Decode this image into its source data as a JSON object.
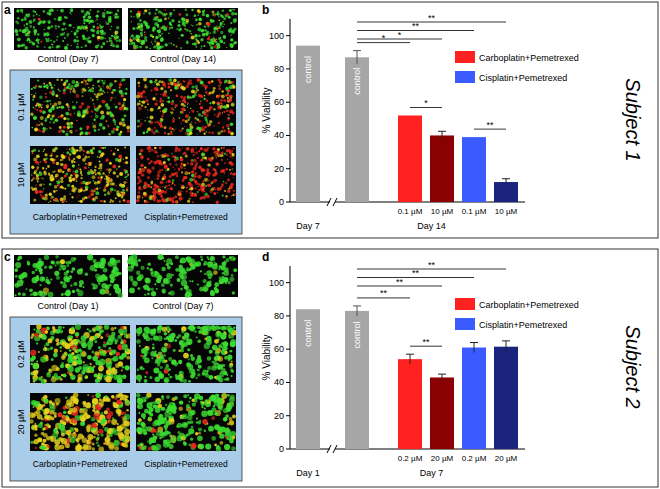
{
  "figure": {
    "panel_letters": [
      "a",
      "b",
      "c",
      "d"
    ],
    "subjects": [
      "Subject 1",
      "Subject 2"
    ]
  },
  "image_panels": [
    {
      "controls": [
        "Control (Day 7)",
        "Control (Day 14)"
      ],
      "rows": [
        "0.1 µM",
        "10 µM"
      ],
      "columns": [
        "Carboplatin+Pemetrexed",
        "Cisplatin+Pemetrexed"
      ]
    },
    {
      "controls": [
        "Control (Day 1)",
        "Control (Day 7)"
      ],
      "rows": [
        "0.2 µM",
        "20 µM"
      ],
      "columns": [
        "Carboplatin+Pemetrexed",
        "Cisplatin+Pemetrexed"
      ]
    }
  ],
  "chart_data": [
    {
      "type": "bar",
      "y_label": "% Viability",
      "ylim": [
        0,
        110
      ],
      "yticks": [
        0,
        20,
        40,
        60,
        80,
        100
      ],
      "categories": [
        null,
        null,
        "0.1 µM",
        "10 µM",
        "0.1 µM",
        "10 µM"
      ],
      "x_groups": [
        "Day 7",
        "Day 14",
        "Day 14",
        "Day 14",
        "Day 14",
        "Day 14"
      ],
      "legend": "top-right",
      "series": [
        {
          "name": "control",
          "color": "#a6a6a6",
          "values": [
            94,
            87,
            null,
            null,
            null,
            null
          ],
          "errors": [
            null,
            4,
            null,
            null,
            null,
            null
          ]
        },
        {
          "name": "Carboplatin+Pemetrexed",
          "color": "#ff2020",
          "colors": [
            null,
            null,
            "#ff2020",
            "#8b0000",
            null,
            null
          ],
          "values": [
            null,
            null,
            52,
            40,
            null,
            null
          ],
          "errors": [
            null,
            null,
            null,
            2.5,
            null,
            null
          ]
        },
        {
          "name": "Cisplatin+Pemetrexed",
          "color": "#3a5bff",
          "colors": [
            null,
            null,
            null,
            null,
            "#3a5bff",
            "#1a237e"
          ],
          "values": [
            null,
            null,
            null,
            null,
            39,
            12
          ],
          "errors": [
            null,
            null,
            null,
            null,
            null,
            2
          ]
        }
      ],
      "significance": [
        {
          "from": 1,
          "to": 5,
          "label": "**"
        },
        {
          "from": 1,
          "to": 4,
          "label": "**"
        },
        {
          "from": 1,
          "to": 3,
          "label": "*"
        },
        {
          "from": 1,
          "to": 2,
          "label": "*"
        },
        {
          "from": 2,
          "to": 3,
          "label": "*"
        },
        {
          "from": 4,
          "to": 5,
          "label": "**"
        }
      ]
    },
    {
      "type": "bar",
      "y_label": "% Viability",
      "ylim": [
        0,
        110
      ],
      "yticks": [
        0,
        20,
        40,
        60,
        80,
        100
      ],
      "categories": [
        null,
        null,
        "0.2 µM",
        "20 µM",
        "0.2 µM",
        "20 µM"
      ],
      "x_groups": [
        "Day 1",
        "Day 7",
        "Day 7",
        "Day 7",
        "Day 7",
        "Day 7"
      ],
      "legend": "top-right",
      "series": [
        {
          "name": "control",
          "color": "#a6a6a6",
          "values": [
            84,
            83,
            null,
            null,
            null,
            null
          ],
          "errors": [
            null,
            3,
            null,
            null,
            null,
            null
          ]
        },
        {
          "name": "Carboplatin+Pemetrexed",
          "color": "#ff2020",
          "colors": [
            null,
            null,
            "#ff2020",
            "#8b0000",
            null,
            null
          ],
          "values": [
            null,
            null,
            54,
            43,
            null,
            null
          ],
          "errors": [
            null,
            null,
            3,
            2,
            null,
            null
          ]
        },
        {
          "name": "Cisplatin+Pemetrexed",
          "color": "#3a5bff",
          "colors": [
            null,
            null,
            null,
            null,
            "#3a5bff",
            "#1a237e"
          ],
          "values": [
            null,
            null,
            null,
            null,
            61,
            61.5
          ],
          "errors": [
            null,
            null,
            null,
            null,
            3,
            3.5
          ]
        }
      ],
      "significance": [
        {
          "from": 1,
          "to": 5,
          "label": "**"
        },
        {
          "from": 1,
          "to": 4,
          "label": "**"
        },
        {
          "from": 1,
          "to": 3,
          "label": "**"
        },
        {
          "from": 1,
          "to": 2,
          "label": "**"
        },
        {
          "from": 2,
          "to": 3,
          "label": "**"
        }
      ]
    }
  ]
}
